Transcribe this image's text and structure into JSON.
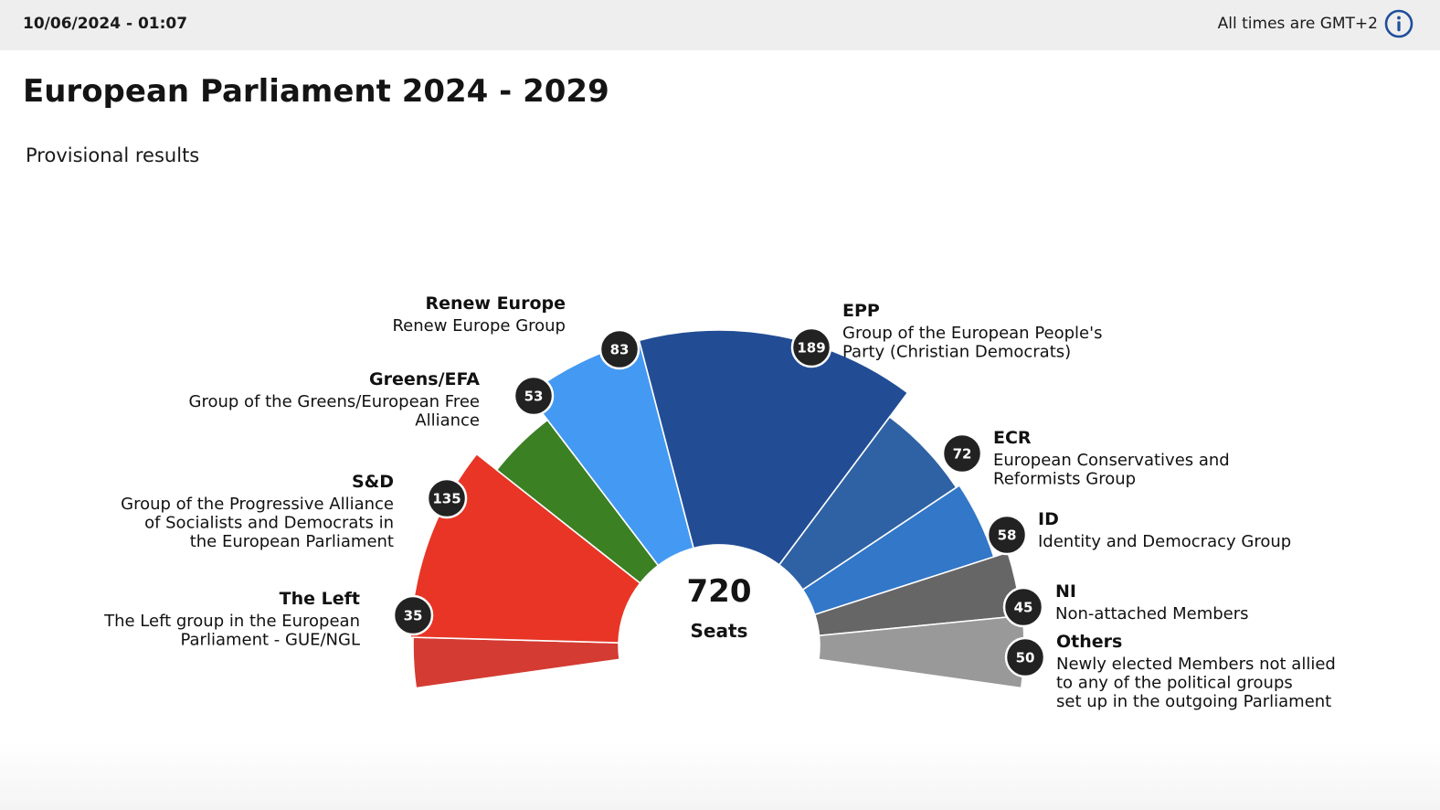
{
  "header": {
    "timestamp": "10/06/2024 - 01:07",
    "timezone_note": "All times are GMT+2"
  },
  "page": {
    "title": "European Parliament 2024 - 2029",
    "subtitle": "Provisional results"
  },
  "chart_data": {
    "type": "pie",
    "variant": "parliament-hemicycle",
    "total": 720,
    "total_label": "Seats",
    "groups": [
      {
        "key": "left",
        "short": "The Left",
        "full": [
          "The Left group in the European",
          "Parliament - GUE/NGL"
        ],
        "seats": 35,
        "color": "#d43b33"
      },
      {
        "key": "sd",
        "short": "S&D",
        "full": [
          "Group of the Progressive Alliance",
          "of Socialists and Democrats in",
          "the European Parliament"
        ],
        "seats": 135,
        "color": "#e83525"
      },
      {
        "key": "greens",
        "short": "Greens/EFA",
        "full": [
          "Group of the Greens/European Free",
          "Alliance"
        ],
        "seats": 53,
        "color": "#3b8023"
      },
      {
        "key": "renew",
        "short": "Renew Europe",
        "full": [
          "Renew Europe Group"
        ],
        "seats": 83,
        "color": "#4499f2"
      },
      {
        "key": "epp",
        "short": "EPP",
        "full": [
          "Group of the European People's",
          "Party (Christian Democrats)"
        ],
        "seats": 189,
        "color": "#224d95"
      },
      {
        "key": "ecr",
        "short": "ECR",
        "full": [
          "European Conservatives and",
          "Reformists Group"
        ],
        "seats": 72,
        "color": "#2f62a4"
      },
      {
        "key": "id",
        "short": "ID",
        "full": [
          "Identity and Democracy Group"
        ],
        "seats": 58,
        "color": "#3277c8"
      },
      {
        "key": "ni",
        "short": "NI",
        "full": [
          "Non-attached Members"
        ],
        "seats": 45,
        "color": "#666666"
      },
      {
        "key": "others",
        "short": "Others",
        "full": [
          "Newly elected Members not allied",
          "to any of the political groups",
          "set up in the outgoing Parliament"
        ],
        "seats": 50,
        "color": "#999999"
      }
    ]
  },
  "colors": {
    "topbar_bg": "#eeeeee",
    "bubble_fill": "#222222",
    "info_icon": "#1f4f9c"
  },
  "icons": {
    "info": "info-circle-icon"
  }
}
